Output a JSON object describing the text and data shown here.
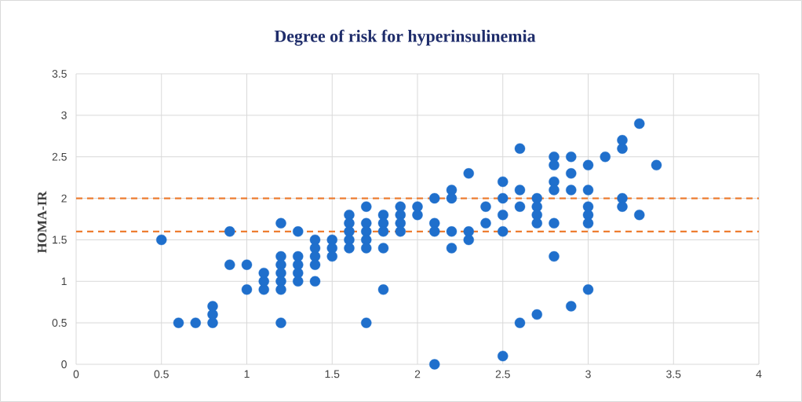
{
  "chart_data": {
    "type": "scatter",
    "title": "Degree of risk for hyperinsulinemia",
    "ylabel": "HOMA-IR",
    "xlim": [
      0,
      4
    ],
    "ylim": [
      0,
      3.5
    ],
    "xticks": [
      0,
      0.5,
      1,
      1.5,
      2,
      2.5,
      3,
      3.5,
      4
    ],
    "yticks": [
      0,
      0.5,
      1,
      1.5,
      2,
      2.5,
      3,
      3.5
    ],
    "grid": true,
    "ref_lines": [
      {
        "axis": "y",
        "value": 2,
        "color": "#ed7d31",
        "line_style": "dashed"
      },
      {
        "axis": "y",
        "value": 1.6,
        "color": "#ed7d31",
        "line_style": "dashed"
      }
    ],
    "series": [
      {
        "color": "#1f6fcc",
        "x": [
          0.5,
          0.6,
          0.7,
          0.8,
          0.8,
          0.8,
          0.9,
          0.9,
          1.0,
          1.0,
          1.1,
          1.1,
          1.1,
          1.2,
          1.2,
          1.2,
          1.2,
          1.2,
          1.2,
          1.2,
          1.3,
          1.3,
          1.3,
          1.3,
          1.3,
          1.4,
          1.4,
          1.4,
          1.4,
          1.4,
          1.5,
          1.5,
          1.5,
          1.6,
          1.6,
          1.6,
          1.6,
          1.6,
          1.7,
          1.7,
          1.7,
          1.7,
          1.7,
          1.7,
          1.8,
          1.8,
          1.8,
          1.8,
          1.8,
          1.9,
          1.9,
          1.9,
          1.9,
          2.0,
          2.0,
          2.1,
          2.1,
          2.1,
          2.1,
          2.2,
          2.2,
          2.2,
          2.2,
          2.3,
          2.3,
          2.3,
          2.4,
          2.4,
          2.5,
          2.5,
          2.5,
          2.5,
          2.5,
          2.6,
          2.6,
          2.6,
          2.6,
          2.7,
          2.7,
          2.7,
          2.7,
          2.7,
          2.8,
          2.8,
          2.8,
          2.8,
          2.8,
          2.8,
          2.9,
          2.9,
          2.9,
          2.9,
          3.0,
          3.0,
          3.0,
          3.0,
          3.0,
          3.0,
          3.1,
          3.2,
          3.2,
          3.2,
          3.2,
          3.3,
          3.3,
          3.4
        ],
        "values": [
          1.5,
          0.5,
          0.5,
          0.5,
          0.6,
          0.7,
          1.6,
          1.2,
          1.2,
          0.9,
          0.9,
          1.0,
          1.1,
          1.7,
          1.3,
          1.2,
          1.1,
          1.0,
          0.9,
          0.5,
          1.6,
          1.3,
          1.2,
          1.1,
          1.0,
          1.5,
          1.4,
          1.3,
          1.2,
          1.0,
          1.5,
          1.4,
          1.3,
          1.8,
          1.7,
          1.6,
          1.5,
          1.4,
          1.9,
          1.7,
          1.6,
          1.5,
          1.4,
          0.5,
          1.8,
          1.7,
          1.6,
          1.4,
          0.9,
          1.9,
          1.8,
          1.7,
          1.6,
          1.9,
          1.8,
          2.0,
          1.7,
          1.6,
          0,
          2.1,
          2.0,
          1.6,
          1.4,
          2.3,
          1.6,
          1.5,
          1.9,
          1.7,
          2.2,
          2.0,
          1.8,
          1.6,
          0.1,
          2.6,
          2.1,
          1.9,
          0.5,
          2.0,
          1.9,
          1.8,
          1.7,
          0.6,
          2.5,
          2.4,
          2.2,
          2.1,
          1.7,
          1.3,
          2.5,
          2.3,
          2.1,
          0.7,
          2.4,
          2.1,
          1.9,
          1.8,
          1.7,
          0.9,
          2.5,
          2.7,
          2.6,
          2.0,
          1.9,
          2.9,
          1.8,
          2.4
        ]
      }
    ]
  }
}
